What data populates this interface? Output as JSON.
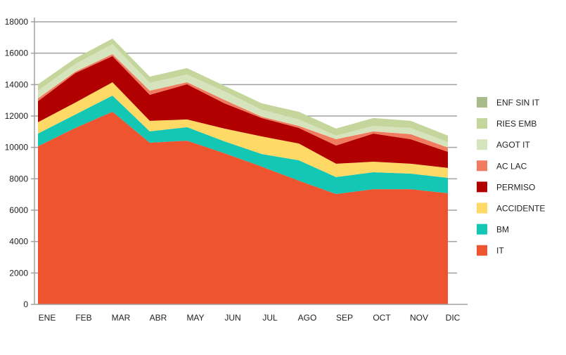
{
  "chart_data": {
    "type": "area",
    "stacked": true,
    "title": "",
    "xlabel": "",
    "ylabel": "",
    "categories": [
      "ENE",
      "FEB",
      "MAR",
      "ABR",
      "MAY",
      "JUN",
      "JUL",
      "AGO",
      "SEP",
      "OCT",
      "NOV",
      "DIC"
    ],
    "ylim": [
      0,
      18000
    ],
    "yticks": [
      0,
      2000,
      4000,
      6000,
      8000,
      10000,
      12000,
      14000,
      16000,
      18000
    ],
    "grid": true,
    "legend_position": "right",
    "series": [
      {
        "name": "IT",
        "color": "#ee5430",
        "values": [
          10070,
          11240,
          12270,
          10300,
          10430,
          9630,
          8780,
          7880,
          7030,
          7340,
          7340,
          7080
        ]
      },
      {
        "name": "BM",
        "color": "#14c6b4",
        "values": [
          810,
          850,
          1030,
          720,
          860,
          760,
          800,
          1300,
          1080,
          1080,
          990,
          980
        ]
      },
      {
        "name": "ACCIDENTE",
        "color": "#fed966",
        "values": [
          720,
          760,
          850,
          670,
          490,
          810,
          1120,
          1070,
          850,
          670,
          630,
          630
        ]
      },
      {
        "name": "PERMISO",
        "color": "#b10000",
        "values": [
          1340,
          1880,
          1660,
          1660,
          2240,
          1610,
          1170,
          990,
          1160,
          1790,
          1560,
          1030
        ]
      },
      {
        "name": "AC LAC",
        "color": "#f07b5f",
        "values": [
          180,
          90,
          130,
          260,
          130,
          220,
          90,
          130,
          400,
          140,
          320,
          270
        ]
      },
      {
        "name": "AGOT IT",
        "color": "#d6e4be",
        "values": [
          490,
          500,
          630,
          500,
          490,
          540,
          440,
          410,
          230,
          350,
          400,
          350
        ]
      },
      {
        "name": "RIES EMB",
        "color": "#c5d69c",
        "values": [
          410,
          350,
          360,
          400,
          410,
          360,
          410,
          490,
          450,
          500,
          450,
          410
        ]
      },
      {
        "name": "ENF SIN IT",
        "color": "#a8bc8a",
        "values": [
          0,
          0,
          0,
          0,
          0,
          0,
          0,
          0,
          0,
          0,
          0,
          0
        ]
      }
    ]
  }
}
